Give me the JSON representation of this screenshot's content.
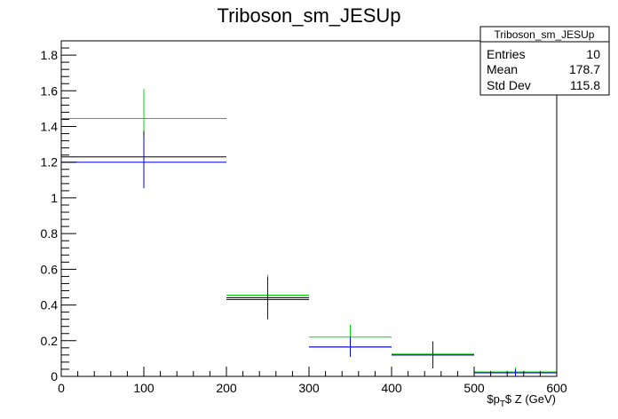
{
  "chart_data": {
    "type": "line",
    "title": "Triboson_sm_JESUp",
    "xlabel_main": "$p",
    "xlabel_sub": "T",
    "xlabel_rest": "$ Z (GeV)",
    "xlim": [
      0,
      600
    ],
    "ylim": [
      0,
      1.88
    ],
    "x_ticks": [
      0,
      100,
      200,
      300,
      400,
      500,
      600
    ],
    "y_ticks": [
      0,
      0.2,
      0.4,
      0.6,
      0.8,
      1,
      1.2,
      1.4,
      1.6,
      1.8
    ],
    "x_tick_labels": [
      "0",
      "100",
      "200",
      "300",
      "400",
      "500",
      "600"
    ],
    "y_tick_labels": [
      "0",
      "0.2",
      "0.4",
      "0.6",
      "0.8",
      "1",
      "1.2",
      "1.4",
      "1.6",
      "1.8"
    ],
    "bins": [
      {
        "xlow": 0,
        "xhigh": 200
      },
      {
        "xlow": 200,
        "xhigh": 300
      },
      {
        "xlow": 300,
        "xhigh": 400
      },
      {
        "xlow": 400,
        "xhigh": 500
      },
      {
        "xlow": 500,
        "xhigh": 600
      }
    ],
    "series": [
      {
        "color": "#00dd00",
        "values": [
          1.445,
          0.455,
          0.22,
          0.125,
          0.025
        ],
        "errors": [
          0.165,
          0.115,
          0.07,
          0.07,
          0.025
        ]
      },
      {
        "color": "#000000",
        "values": [
          1.23,
          0.44,
          0.165,
          0.12,
          0.02
        ],
        "errors": [
          0.145,
          0.115,
          0.055,
          0.075,
          0.02
        ]
      },
      {
        "color": "#0000ee",
        "values": [
          1.2,
          0.43,
          0.165,
          0.12,
          0.02
        ],
        "errors": [
          0.145,
          0.11,
          0.055,
          0.07,
          0.02
        ]
      }
    ],
    "stats_box": {
      "title": "Triboson_sm_JESUp",
      "rows": [
        {
          "label": "Entries",
          "value": "10"
        },
        {
          "label": "Mean",
          "value": "178.7"
        },
        {
          "label": "Std Dev",
          "value": "115.8"
        }
      ]
    }
  }
}
